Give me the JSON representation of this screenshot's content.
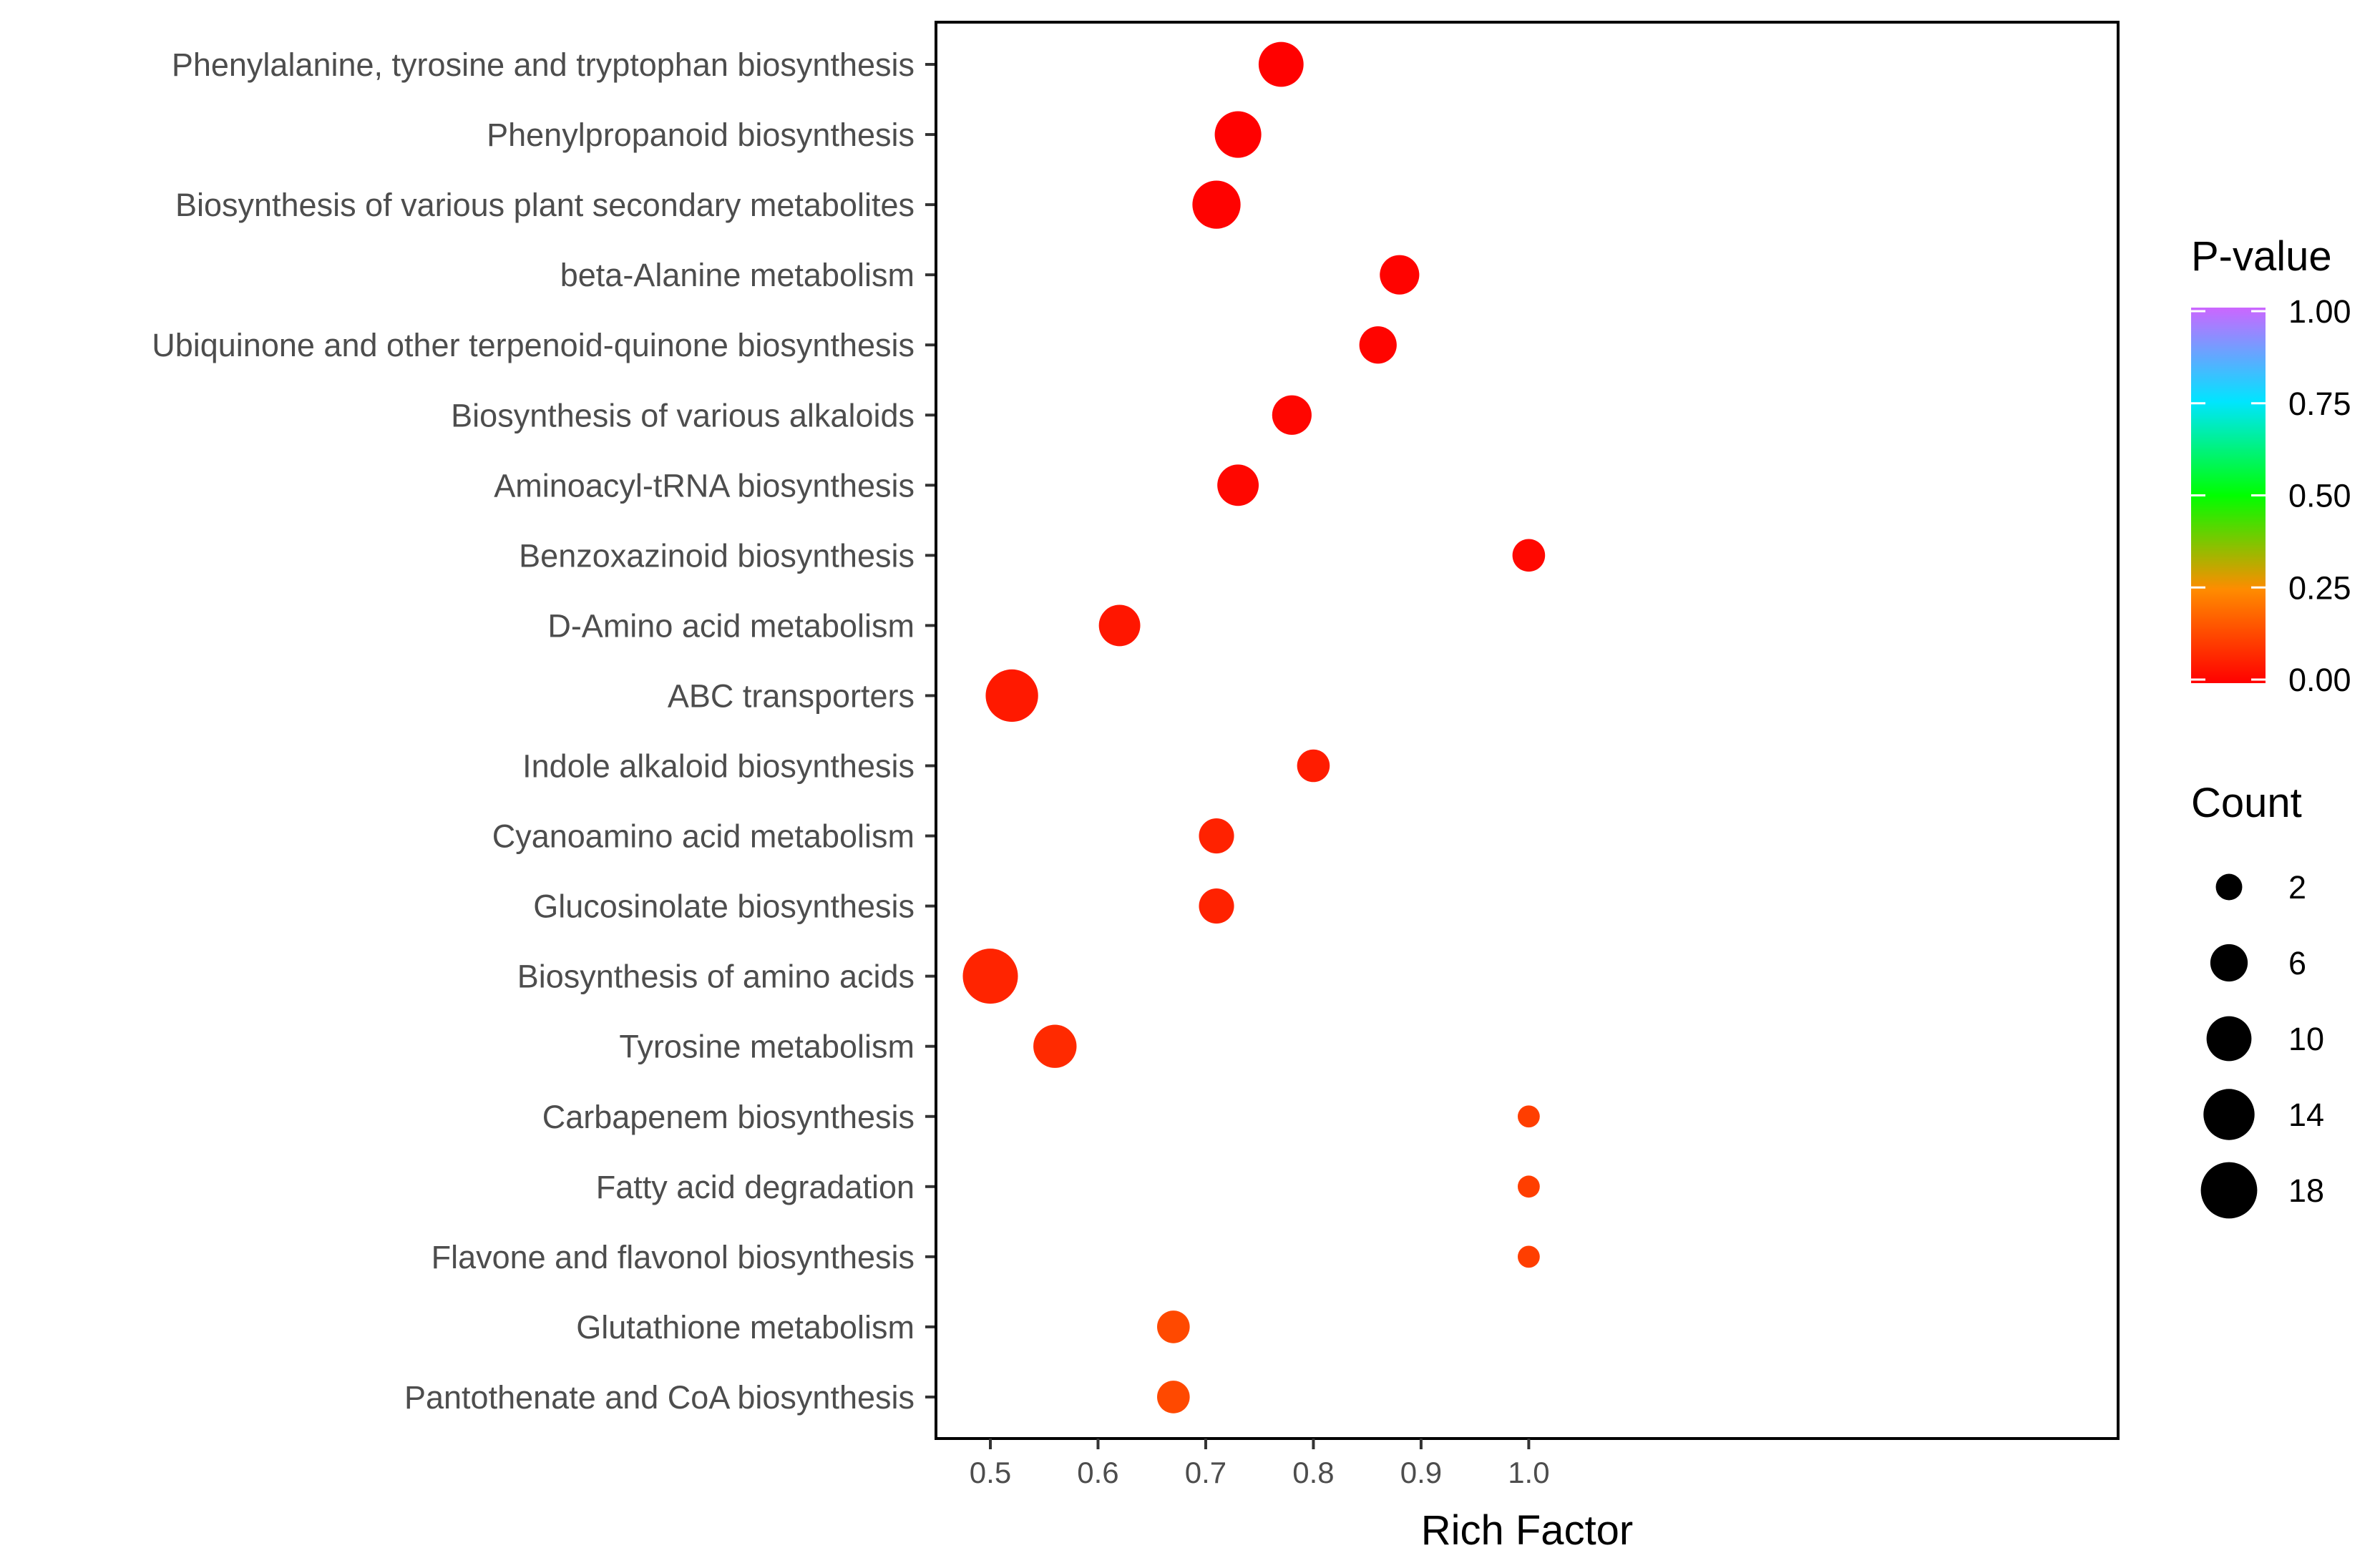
{
  "chart_data": {
    "type": "scatter",
    "title": "",
    "xlabel": "Rich Factor",
    "ylabel": "",
    "xlim": [
      0.475,
      1.025
    ],
    "x_ticks": [
      "0.5",
      "0.6",
      "0.7",
      "0.8",
      "0.9",
      "1.0"
    ],
    "grid": false,
    "legend_position": "right",
    "categories": [
      "Phenylalanine, tyrosine and tryptophan biosynthesis",
      "Phenylpropanoid biosynthesis",
      "Biosynthesis of various plant secondary metabolites",
      "beta-Alanine metabolism",
      "Ubiquinone and other terpenoid-quinone biosynthesis",
      "Biosynthesis of various alkaloids",
      "Aminoacyl-tRNA biosynthesis",
      "Benzoxazinoid biosynthesis",
      "D-Amino acid metabolism",
      "ABC transporters",
      "Indole alkaloid biosynthesis",
      "Cyanoamino acid metabolism",
      "Glucosinolate biosynthesis",
      "Biosynthesis of amino acids",
      "Tyrosine metabolism",
      "Carbapenem biosynthesis",
      "Fatty acid degradation",
      "Flavone and flavonol biosynthesis",
      "Glutathione metabolism",
      "Pantothenate and CoA biosynthesis"
    ],
    "points": [
      {
        "category": "Phenylalanine, tyrosine and tryptophan biosynthesis",
        "rich_factor": 0.77,
        "count": 10,
        "pvalue": 0.001
      },
      {
        "category": "Phenylpropanoid biosynthesis",
        "rich_factor": 0.73,
        "count": 11,
        "pvalue": 0.002
      },
      {
        "category": "Biosynthesis of various plant secondary metabolites",
        "rich_factor": 0.71,
        "count": 12,
        "pvalue": 0.003
      },
      {
        "category": "beta-Alanine metabolism",
        "rich_factor": 0.88,
        "count": 7,
        "pvalue": 0.005
      },
      {
        "category": "Ubiquinone and other terpenoid-quinone biosynthesis",
        "rich_factor": 0.86,
        "count": 6,
        "pvalue": 0.008
      },
      {
        "category": "Biosynthesis of various alkaloids",
        "rich_factor": 0.78,
        "count": 7,
        "pvalue": 0.01
      },
      {
        "category": "Aminoacyl-tRNA biosynthesis",
        "rich_factor": 0.73,
        "count": 8,
        "pvalue": 0.012
      },
      {
        "category": "Benzoxazinoid biosynthesis",
        "rich_factor": 1.0,
        "count": 4,
        "pvalue": 0.015
      },
      {
        "category": "D-Amino acid metabolism",
        "rich_factor": 0.62,
        "count": 8,
        "pvalue": 0.04
      },
      {
        "category": "ABC transporters",
        "rich_factor": 0.52,
        "count": 15,
        "pvalue": 0.045
      },
      {
        "category": "Indole alkaloid biosynthesis",
        "rich_factor": 0.8,
        "count": 4,
        "pvalue": 0.05
      },
      {
        "category": "Cyanoamino acid metabolism",
        "rich_factor": 0.71,
        "count": 5,
        "pvalue": 0.06
      },
      {
        "category": "Glucosinolate biosynthesis",
        "rich_factor": 0.71,
        "count": 5,
        "pvalue": 0.06
      },
      {
        "category": "Biosynthesis of amino acids",
        "rich_factor": 0.5,
        "count": 17,
        "pvalue": 0.065
      },
      {
        "category": "Tyrosine metabolism",
        "rich_factor": 0.56,
        "count": 9,
        "pvalue": 0.075
      },
      {
        "category": "Carbapenem biosynthesis",
        "rich_factor": 1.0,
        "count": 1,
        "pvalue": 0.11
      },
      {
        "category": "Fatty acid degradation",
        "rich_factor": 1.0,
        "count": 1,
        "pvalue": 0.11
      },
      {
        "category": "Flavone and flavonol biosynthesis",
        "rich_factor": 1.0,
        "count": 1,
        "pvalue": 0.11
      },
      {
        "category": "Glutathione metabolism",
        "rich_factor": 0.67,
        "count": 4,
        "pvalue": 0.13
      },
      {
        "category": "Pantothenate and CoA biosynthesis",
        "rich_factor": 0.67,
        "count": 4,
        "pvalue": 0.13
      }
    ],
    "color_legend": {
      "title": "P-value",
      "range": [
        0,
        1
      ],
      "ticks": [
        "1.00",
        "0.75",
        "0.50",
        "0.25",
        "0.00"
      ],
      "colors": [
        "#ff0000",
        "#ff8c00",
        "#00ff00",
        "#00e5ff",
        "#cc66ff"
      ]
    },
    "size_legend": {
      "title": "Count",
      "values": [
        2,
        6,
        10,
        14,
        18
      ],
      "labels": [
        "2",
        "6",
        "10",
        "14",
        "18"
      ]
    }
  }
}
